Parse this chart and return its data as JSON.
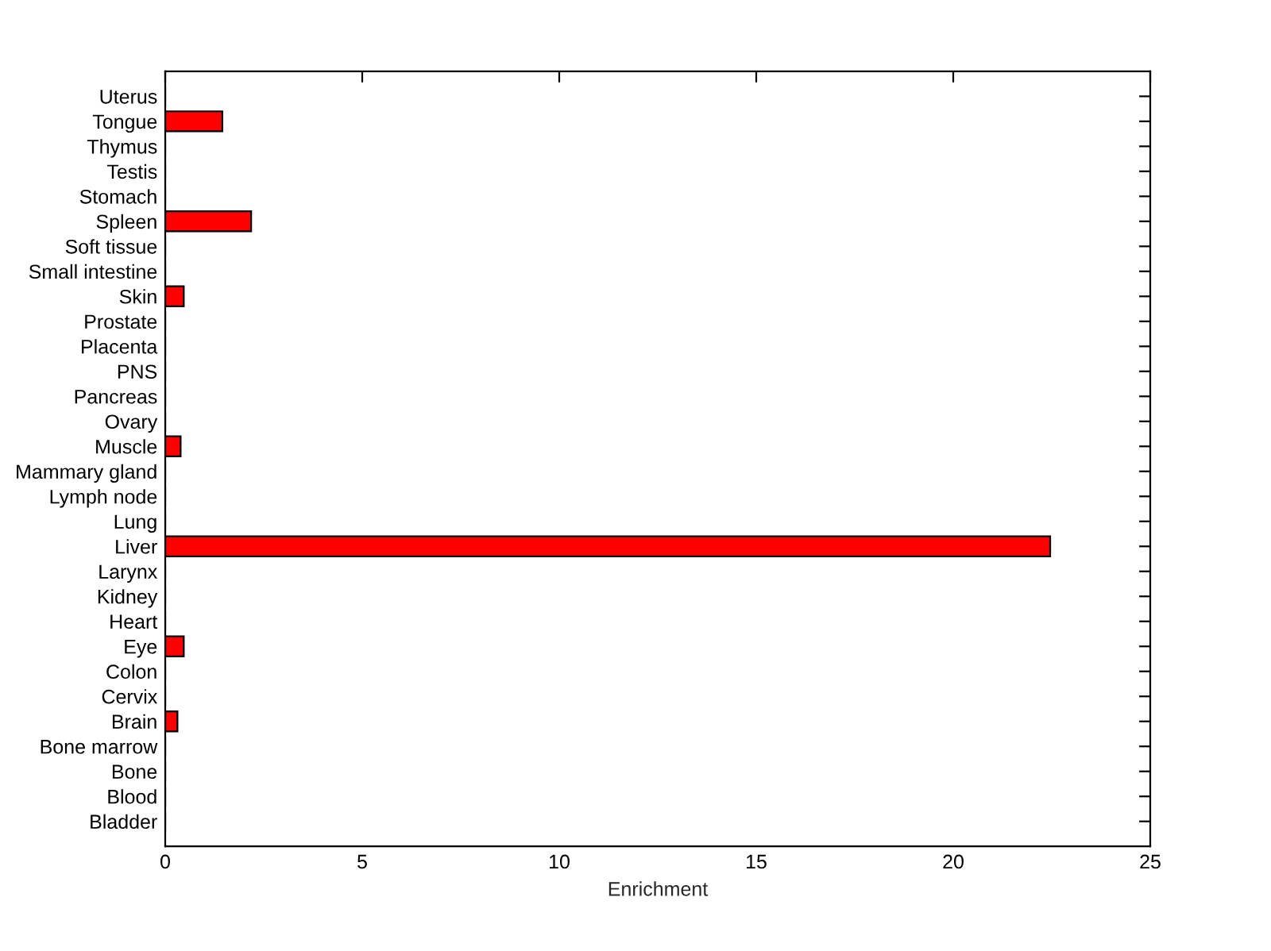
{
  "chart_data": {
    "type": "bar",
    "orientation": "horizontal",
    "xlabel": "Enrichment",
    "categories": [
      "Uterus",
      "Tongue",
      "Thymus",
      "Testis",
      "Stomach",
      "Spleen",
      "Soft tissue",
      "Small intestine",
      "Skin",
      "Prostate",
      "Placenta",
      "PNS",
      "Pancreas",
      "Ovary",
      "Muscle",
      "Mammary gland",
      "Lymph node",
      "Lung",
      "Liver",
      "Larynx",
      "Kidney",
      "Heart",
      "Eye",
      "Colon",
      "Cervix",
      "Brain",
      "Bone marrow",
      "Bone",
      "Blood",
      "Bladder"
    ],
    "values": [
      0,
      1.45,
      0,
      0,
      0,
      2.18,
      0,
      0,
      0.47,
      0,
      0,
      0,
      0,
      0,
      0.39,
      0,
      0,
      0,
      22.46,
      0,
      0,
      0,
      0.47,
      0,
      0,
      0.31,
      0,
      0,
      0,
      0
    ],
    "color": "#ff0000",
    "xlim": [
      0,
      25
    ],
    "xticks": [
      0,
      5,
      10,
      15,
      20,
      25
    ],
    "grid": false,
    "legend": false
  }
}
